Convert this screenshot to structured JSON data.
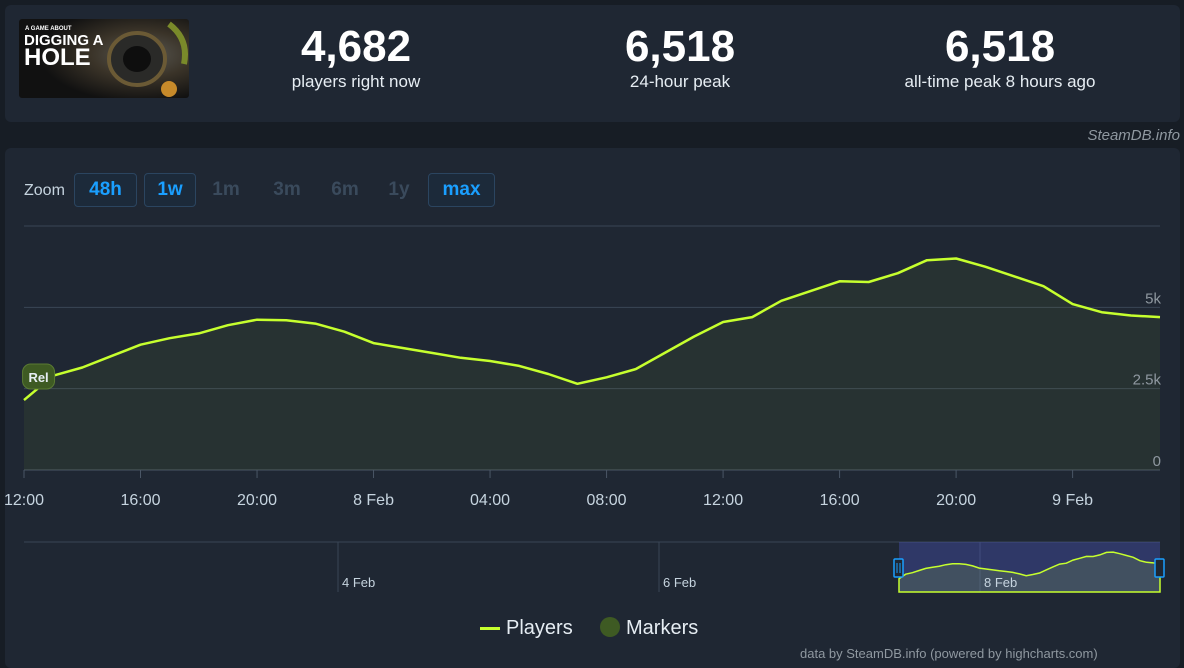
{
  "stats": [
    {
      "value": "4,682",
      "label": "players right now"
    },
    {
      "value": "6,518",
      "label": "24-hour peak"
    },
    {
      "value": "6,518",
      "label": "all-time peak 8 hours ago"
    }
  ],
  "logo": {
    "small_text": "A GAME ABOUT",
    "title_line1": "DIGGING A",
    "title_line2": "HOLE"
  },
  "credit": "SteamDB.info",
  "zoom": {
    "label": "Zoom",
    "buttons": [
      {
        "label": "48h",
        "active": true
      },
      {
        "label": "1w",
        "active": true
      },
      {
        "label": "1m",
        "active": false
      },
      {
        "label": "3m",
        "active": false
      },
      {
        "label": "6m",
        "active": false
      },
      {
        "label": "1y",
        "active": false
      },
      {
        "label": "max",
        "active": true
      }
    ]
  },
  "chart_data": {
    "type": "line",
    "series": [
      {
        "name": "Players",
        "color": "#c6ff2e",
        "values": [
          [
            "2025-02-07T11:00",
            2150
          ],
          [
            "2025-02-07T12:00",
            2900
          ],
          [
            "2025-02-07T13:00",
            3150
          ],
          [
            "2025-02-07T14:00",
            3500
          ],
          [
            "2025-02-07T15:00",
            3850
          ],
          [
            "2025-02-07T16:00",
            4050
          ],
          [
            "2025-02-07T17:00",
            4200
          ],
          [
            "2025-02-07T18:00",
            4450
          ],
          [
            "2025-02-07T19:00",
            4620
          ],
          [
            "2025-02-07T20:00",
            4600
          ],
          [
            "2025-02-07T21:00",
            4500
          ],
          [
            "2025-02-07T22:00",
            4250
          ],
          [
            "2025-02-07T23:00",
            3900
          ],
          [
            "2025-02-08T00:00",
            3750
          ],
          [
            "2025-02-08T01:00",
            3600
          ],
          [
            "2025-02-08T02:00",
            3450
          ],
          [
            "2025-02-08T03:00",
            3350
          ],
          [
            "2025-02-08T04:00",
            3200
          ],
          [
            "2025-02-08T05:00",
            2950
          ],
          [
            "2025-02-08T06:00",
            2650
          ],
          [
            "2025-02-08T07:00",
            2850
          ],
          [
            "2025-02-08T08:00",
            3100
          ],
          [
            "2025-02-08T09:00",
            3600
          ],
          [
            "2025-02-08T10:00",
            4100
          ],
          [
            "2025-02-08T11:00",
            4550
          ],
          [
            "2025-02-08T12:00",
            4700
          ],
          [
            "2025-02-08T13:00",
            5200
          ],
          [
            "2025-02-08T14:00",
            5500
          ],
          [
            "2025-02-08T15:00",
            5800
          ],
          [
            "2025-02-08T16:00",
            5780
          ],
          [
            "2025-02-08T17:00",
            6050
          ],
          [
            "2025-02-08T18:00",
            6450
          ],
          [
            "2025-02-08T19:00",
            6500
          ],
          [
            "2025-02-08T20:00",
            6250
          ],
          [
            "2025-02-08T21:00",
            5950
          ],
          [
            "2025-02-08T22:00",
            5650
          ],
          [
            "2025-02-08T23:00",
            5100
          ],
          [
            "2025-02-09T00:00",
            4850
          ],
          [
            "2025-02-09T01:00",
            4750
          ],
          [
            "2025-02-09T02:00",
            4700
          ]
        ]
      }
    ],
    "y_ticks": [
      "0",
      "2.5k",
      "5k"
    ],
    "ylim": [
      0,
      7500
    ],
    "x_ticks": [
      {
        "t": "2025-02-07T11:00",
        "label": "12:00"
      },
      {
        "t": "2025-02-07T15:00",
        "label": "16:00"
      },
      {
        "t": "2025-02-07T19:00",
        "label": "20:00"
      },
      {
        "t": "2025-02-07T23:00",
        "label": "8 Feb"
      },
      {
        "t": "2025-02-08T03:00",
        "label": "04:00"
      },
      {
        "t": "2025-02-08T07:00",
        "label": "08:00"
      },
      {
        "t": "2025-02-08T11:00",
        "label": "12:00"
      },
      {
        "t": "2025-02-08T15:00",
        "label": "16:00"
      },
      {
        "t": "2025-02-08T19:00",
        "label": "20:00"
      },
      {
        "t": "2025-02-08T23:00",
        "label": "9 Feb"
      }
    ],
    "markers": [
      {
        "t": "2025-02-07T11:30",
        "label": "Rel"
      }
    ],
    "navigator_labels": [
      "4 Feb",
      "6 Feb",
      "8 Feb"
    ],
    "legend": [
      {
        "name": "Players",
        "color": "#c6ff2e"
      },
      {
        "name": "Markers",
        "color": "#3e5a23"
      }
    ],
    "grid": true
  },
  "footer_credit": "data by SteamDB.info (powered by highcharts.com)"
}
